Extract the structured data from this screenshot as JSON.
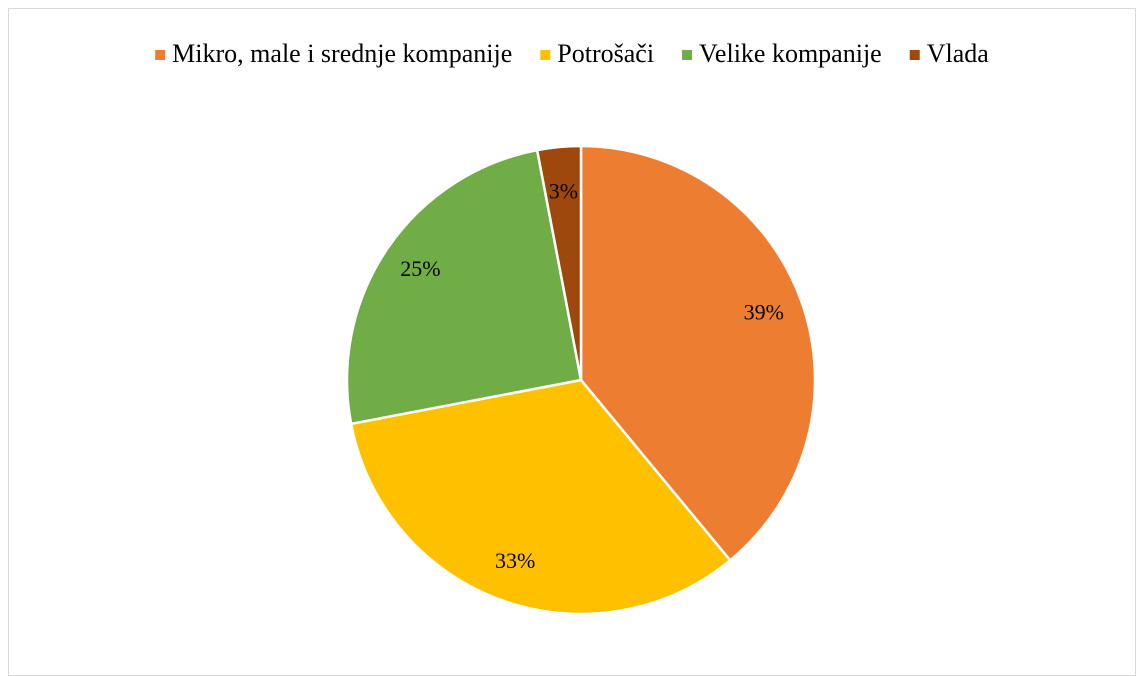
{
  "chart_data": {
    "type": "pie",
    "categories": [
      "Mikro, male i srednje kompanije",
      "Potrošači",
      "Velike kompanije",
      "Vlada"
    ],
    "values": [
      39,
      33,
      25,
      3
    ],
    "value_labels": [
      "39%",
      "33%",
      "25%",
      "3%"
    ],
    "colors": [
      "#ED7D31",
      "#FFC000",
      "#70AD47",
      "#9E480E"
    ],
    "legend": "top"
  }
}
